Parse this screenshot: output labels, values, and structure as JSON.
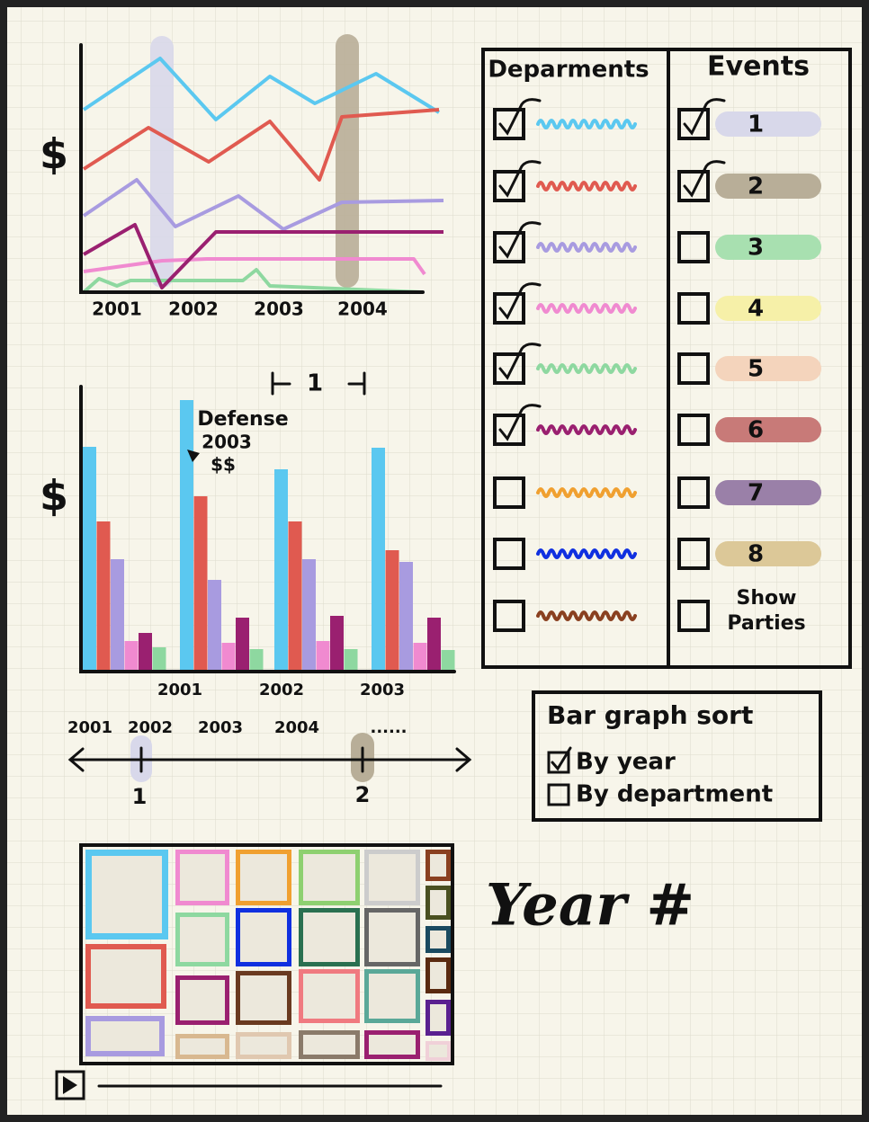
{
  "line_chart": {
    "y_label": "$",
    "x_labels": [
      "2001",
      "2002",
      "2003",
      "2004"
    ]
  },
  "bar_chart": {
    "y_label": "$",
    "x_labels": [
      "2001",
      "2002",
      "2003"
    ],
    "annotation": [
      "Defense",
      "2003",
      "$$"
    ],
    "range_label": "1"
  },
  "timeline": {
    "labels": [
      "2001",
      "2002",
      "2003",
      "2004",
      "......"
    ],
    "markers": [
      "1",
      "2"
    ]
  },
  "departments": {
    "title": "Deparments",
    "items": [
      {
        "color": "#5bc8f0",
        "checked": true
      },
      {
        "color": "#e05a50",
        "checked": true
      },
      {
        "color": "#a89be0",
        "checked": true
      },
      {
        "color": "#f08ad0",
        "checked": true
      },
      {
        "color": "#8ed8a0",
        "checked": true
      },
      {
        "color": "#9a2070",
        "checked": true
      },
      {
        "color": "#f0a030",
        "checked": false
      },
      {
        "color": "#1030e0",
        "checked": false
      },
      {
        "color": "#8a4020",
        "checked": false
      }
    ]
  },
  "events": {
    "title": "Events",
    "items": [
      {
        "label": "1",
        "color": "#d8d8ea",
        "checked": true
      },
      {
        "label": "2",
        "color": "#b8ae98",
        "checked": true
      },
      {
        "label": "3",
        "color": "#a8e0b0",
        "checked": false
      },
      {
        "label": "4",
        "color": "#f6f0a8",
        "checked": false
      },
      {
        "label": "5",
        "color": "#f4d4bc",
        "checked": false
      },
      {
        "label": "6",
        "color": "#c87a78",
        "checked": false
      },
      {
        "label": "7",
        "color": "#9a80a8",
        "checked": false
      },
      {
        "label": "8",
        "color": "#dcc898",
        "checked": false
      }
    ],
    "show_parties": {
      "label": "Show Parties",
      "checked": false
    }
  },
  "sort": {
    "title": "Bar graph sort",
    "options": [
      {
        "label": "By year",
        "checked": true
      },
      {
        "label": "By department",
        "checked": false
      }
    ]
  },
  "treemap_label": "Year #"
}
